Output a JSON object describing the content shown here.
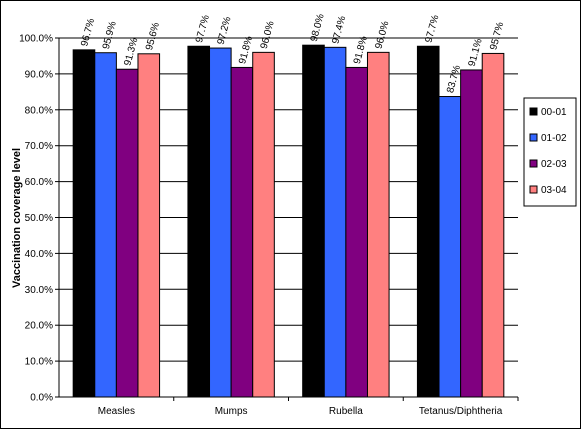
{
  "chart_data": {
    "type": "bar",
    "ylabel": "Vaccination coverage level",
    "ylim": [
      0,
      100
    ],
    "ytick_labels": [
      "0.0%",
      "10.0%",
      "20.0%",
      "30.0%",
      "40.0%",
      "50.0%",
      "60.0%",
      "70.0%",
      "80.0%",
      "90.0%",
      "100.0%"
    ],
    "categories": [
      "Measles",
      "Mumps",
      "Rubella",
      "Tetanus/Diphtheria"
    ],
    "series": [
      {
        "name": "00-01",
        "color": "#000000",
        "values": [
          96.7,
          97.7,
          98.0,
          97.7
        ],
        "labels": [
          "96.7%",
          "97.7%",
          "98.0%",
          "97.7%"
        ]
      },
      {
        "name": "01-02",
        "color": "#3366FF",
        "values": [
          95.9,
          97.2,
          97.4,
          83.7
        ],
        "labels": [
          "95.9%",
          "97.2%",
          "97.4%",
          "83.7%"
        ]
      },
      {
        "name": "02-03",
        "color": "#800080",
        "values": [
          91.3,
          91.8,
          91.8,
          91.1
        ],
        "labels": [
          "91.3%",
          "91.8%",
          "91.8%",
          "91.1%"
        ]
      },
      {
        "name": "03-04",
        "color": "#FF8080",
        "values": [
          95.6,
          96.0,
          96.0,
          95.7
        ],
        "labels": [
          "95.6%",
          "96.0%",
          "96.0%",
          "95.7%"
        ]
      }
    ],
    "grid": true,
    "legend_position": "right"
  }
}
